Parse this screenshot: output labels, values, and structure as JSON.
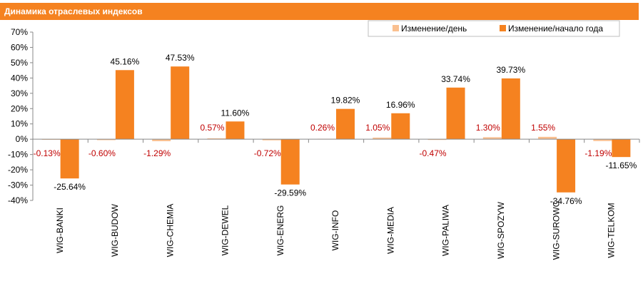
{
  "chart_data": {
    "type": "bar",
    "title": "Динамика отраслевых индексов",
    "categories": [
      "WIG-BANKI",
      "WIG-BUDOW",
      "WIG-CHEMIA",
      "WIG-DEWEL",
      "WIG-ENERG",
      "WIG-INFO",
      "WIG-MEDIA",
      "WIG-PALIWA",
      "WIG-SPOZYW",
      "WIG-SUROWC",
      "WIG-TELKOM"
    ],
    "series": [
      {
        "name": "Изменение/день",
        "color": "#fac090",
        "values": [
          -0.13,
          -0.6,
          -1.29,
          0.57,
          -0.72,
          0.26,
          1.05,
          -0.47,
          1.3,
          1.55,
          -1.19
        ],
        "labels": [
          "-0.13%",
          "-0.60%",
          "-1.29%",
          "0.57%",
          "-0.72%",
          "0.26%",
          "1.05%",
          "-0.47%",
          "1.30%",
          "1.55%",
          "-1.19%"
        ],
        "label_color": "#c00000"
      },
      {
        "name": "Изменение/начало года",
        "color": "#f58220",
        "values": [
          -25.64,
          45.16,
          47.53,
          11.6,
          -29.59,
          19.82,
          16.96,
          33.74,
          39.73,
          -34.76,
          -11.65
        ],
        "labels": [
          "-25.64%",
          "45.16%",
          "47.53%",
          "11.60%",
          "-29.59%",
          "19.82%",
          "16.96%",
          "33.74%",
          "39.73%",
          "-34.76%",
          "-11.65%"
        ],
        "label_color": "#000000"
      }
    ],
    "ylim": [
      -40,
      70
    ],
    "yticks": [
      "70%",
      "60%",
      "50%",
      "40%",
      "30%",
      "20%",
      "10%",
      "0%",
      "-10%",
      "-20%",
      "-30%",
      "-40%"
    ],
    "grid": false,
    "legend_position": "top-right",
    "accent_color": "#f58220"
  }
}
